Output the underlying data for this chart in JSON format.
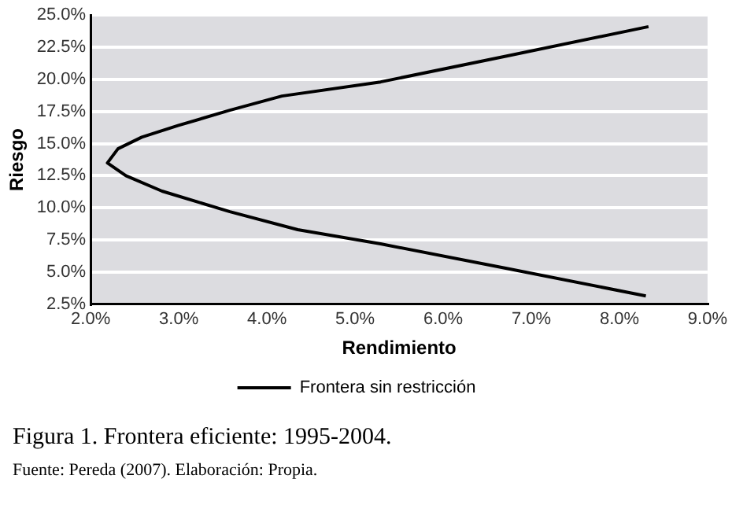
{
  "chart_data": {
    "type": "line",
    "xlabel": "Rendimiento",
    "ylabel": "Riesgo",
    "annotations": [
      "Figura 1. Frontera eficiente: 1995-2004.",
      "Fuente: Pereda (2007). Elaboración: Propia."
    ],
    "series": [
      {
        "name": "Frontera sin restricción",
        "color": "#000000",
        "x": [
          8.3,
          6.71,
          5.29,
          4.35,
          3.58,
          2.81,
          2.4,
          2.19,
          2.31,
          2.58,
          2.99,
          3.58,
          4.17,
          5.29,
          6.71,
          8.33
        ],
        "values": [
          3.15,
          5.3,
          7.2,
          8.3,
          9.7,
          11.3,
          12.5,
          13.5,
          14.6,
          15.5,
          16.4,
          17.6,
          18.7,
          19.8,
          21.8,
          24.1
        ]
      }
    ],
    "xlim": [
      2,
      9
    ],
    "xticks": [
      {
        "value": 2,
        "label": "2.0%"
      },
      {
        "value": 3,
        "label": "3.0%"
      },
      {
        "value": 4,
        "label": "4.0%"
      },
      {
        "value": 5,
        "label": "5.0%"
      },
      {
        "value": 6,
        "label": "6.0%"
      },
      {
        "value": 7,
        "label": "7.0%"
      },
      {
        "value": 8,
        "label": "8.0%"
      },
      {
        "value": 9,
        "label": "9.0%"
      }
    ],
    "ylim": [
      2.5,
      25
    ],
    "yticks": [
      {
        "value": 2.5,
        "label": "2.5%"
      },
      {
        "value": 5,
        "label": "5.0%"
      },
      {
        "value": 7.5,
        "label": "7.5%"
      },
      {
        "value": 10,
        "label": "10.0%"
      },
      {
        "value": 12.5,
        "label": "12.5%"
      },
      {
        "value": 15,
        "label": "15.0%"
      },
      {
        "value": 17.5,
        "label": "17.5%"
      },
      {
        "value": 20,
        "label": "20.0%"
      },
      {
        "value": 22.5,
        "label": "22.5%"
      },
      {
        "value": 25,
        "label": "25.0%"
      }
    ],
    "grid": "y",
    "legend": "bottom",
    "marker": "none",
    "line_style": "solid"
  }
}
